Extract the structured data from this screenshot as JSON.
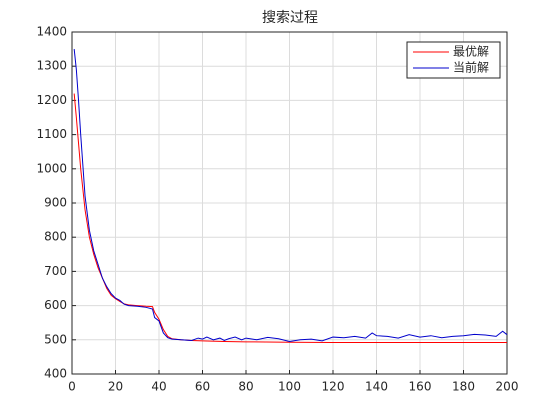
{
  "chart_data": {
    "type": "line",
    "title": "搜索过程",
    "xlim": [
      0,
      200
    ],
    "xticks": [
      0,
      20,
      40,
      60,
      80,
      100,
      120,
      140,
      160,
      180,
      200
    ],
    "ylim": [
      400,
      1400
    ],
    "yticks": [
      400,
      500,
      600,
      700,
      800,
      900,
      1000,
      1100,
      1200,
      1300,
      1400
    ],
    "grid": true,
    "legend": "upper-right",
    "series": [
      {
        "name": "最优解",
        "color": "#ff0000",
        "x": [
          1,
          2,
          4,
          6,
          8,
          10,
          12,
          14,
          16,
          18,
          20,
          22,
          24,
          26,
          30,
          34,
          37,
          38,
          40,
          42,
          44,
          46,
          50,
          55,
          60,
          70,
          80,
          100,
          120,
          200
        ],
        "values": [
          1220,
          1150,
          1000,
          880,
          800,
          750,
          710,
          680,
          650,
          630,
          620,
          612,
          605,
          602,
          600,
          598,
          597,
          580,
          560,
          530,
          510,
          503,
          500,
          498,
          497,
          495,
          494,
          493,
          492,
          492
        ]
      },
      {
        "name": "当前解",
        "color": "#0000cc",
        "x": [
          1,
          2,
          3,
          4,
          6,
          8,
          10,
          12,
          14,
          16,
          18,
          20,
          22,
          24,
          26,
          30,
          34,
          37,
          38,
          40,
          42,
          44,
          46,
          50,
          55,
          58,
          60,
          62,
          65,
          68,
          70,
          72,
          75,
          78,
          80,
          85,
          90,
          95,
          100,
          105,
          110,
          115,
          120,
          125,
          130,
          135,
          138,
          140,
          145,
          150,
          155,
          160,
          165,
          170,
          175,
          180,
          185,
          190,
          195,
          198,
          200
        ],
        "values": [
          1350,
          1290,
          1200,
          1100,
          920,
          820,
          760,
          720,
          680,
          655,
          635,
          622,
          615,
          604,
          600,
          598,
          595,
          590,
          565,
          555,
          520,
          506,
          502,
          500,
          498,
          505,
          502,
          508,
          500,
          505,
          498,
          503,
          508,
          500,
          505,
          500,
          507,
          503,
          495,
          500,
          502,
          497,
          508,
          506,
          510,
          505,
          520,
          512,
          510,
          505,
          515,
          508,
          512,
          506,
          510,
          512,
          516,
          514,
          510,
          525,
          515
        ]
      }
    ]
  }
}
